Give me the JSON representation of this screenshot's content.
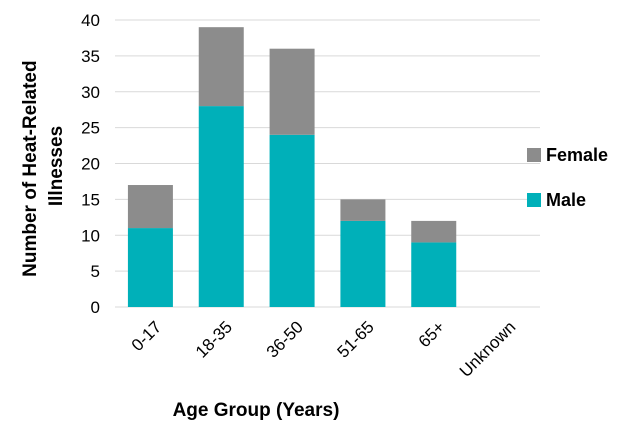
{
  "chart_data": {
    "type": "bar",
    "stacked": true,
    "categories": [
      "0-17",
      "18-35",
      "36-50",
      "51-65",
      "65+",
      "Unknown"
    ],
    "series": [
      {
        "name": "Male",
        "values": [
          11,
          28,
          24,
          12,
          9,
          0
        ],
        "color": "#00B0B9"
      },
      {
        "name": "Female",
        "values": [
          6,
          11,
          12,
          3,
          3,
          0
        ],
        "color": "#8C8C8C"
      }
    ],
    "title": "",
    "xlabel": "Age Group (Years)",
    "ylabel_lines": [
      "Number of Heat-Related",
      "Illnesses"
    ],
    "ylim": [
      0,
      40
    ],
    "yticks": [
      0,
      5,
      10,
      15,
      20,
      25,
      30,
      35,
      40
    ],
    "grid": true,
    "legend_position": "right",
    "legend_order": [
      "Female",
      "Male"
    ],
    "gridline_color": "#D9D9D9"
  }
}
